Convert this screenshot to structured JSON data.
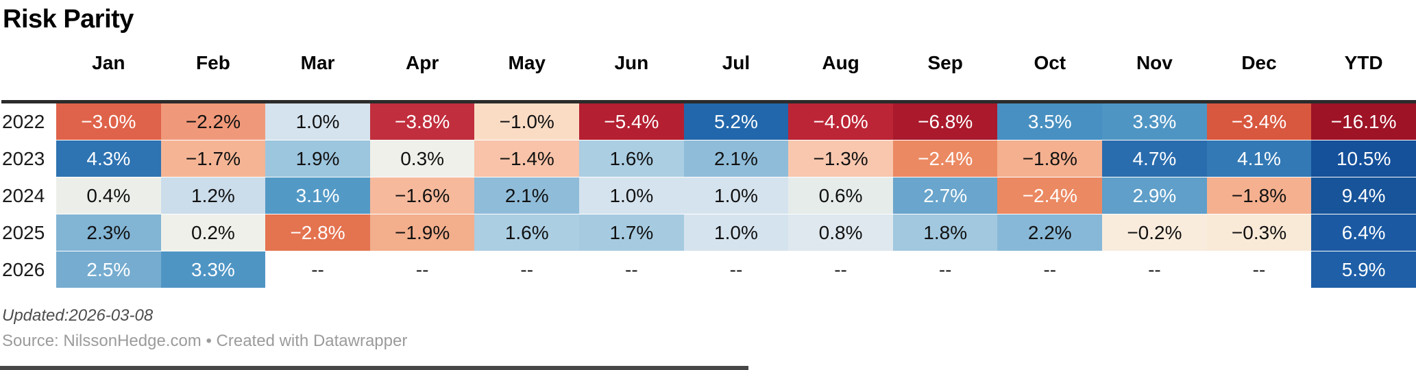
{
  "title": "Risk Parity",
  "columns": [
    "Jan",
    "Feb",
    "Mar",
    "Apr",
    "May",
    "Jun",
    "Jul",
    "Aug",
    "Sep",
    "Oct",
    "Nov",
    "Dec",
    "YTD"
  ],
  "rows": [
    {
      "year": "2022",
      "cells": [
        {
          "v": "−3.0%",
          "bg": "#df634a",
          "fg": "#ffffff"
        },
        {
          "v": "−2.2%",
          "bg": "#f0997a",
          "fg": "#111111"
        },
        {
          "v": "1.0%",
          "bg": "#d5e3ee",
          "fg": "#111111"
        },
        {
          "v": "−3.8%",
          "bg": "#c12e3d",
          "fg": "#ffffff"
        },
        {
          "v": "−1.0%",
          "bg": "#fadcc5",
          "fg": "#111111"
        },
        {
          "v": "−5.4%",
          "bg": "#b41f31",
          "fg": "#ffffff"
        },
        {
          "v": "5.2%",
          "bg": "#2267ab",
          "fg": "#ffffff"
        },
        {
          "v": "−4.0%",
          "bg": "#bc2536",
          "fg": "#ffffff"
        },
        {
          "v": "−6.8%",
          "bg": "#aa1a2c",
          "fg": "#ffffff"
        },
        {
          "v": "3.5%",
          "bg": "#4890c1",
          "fg": "#ffffff"
        },
        {
          "v": "3.3%",
          "bg": "#4f95c4",
          "fg": "#ffffff"
        },
        {
          "v": "−3.4%",
          "bg": "#d8573f",
          "fg": "#ffffff"
        },
        {
          "v": "−16.1%",
          "bg": "#9e1326",
          "fg": "#ffffff"
        }
      ]
    },
    {
      "year": "2023",
      "cells": [
        {
          "v": "4.3%",
          "bg": "#2e73b2",
          "fg": "#ffffff"
        },
        {
          "v": "−1.7%",
          "bg": "#f5b595",
          "fg": "#111111"
        },
        {
          "v": "1.9%",
          "bg": "#9cc5de",
          "fg": "#111111"
        },
        {
          "v": "0.3%",
          "bg": "#eef0e9",
          "fg": "#111111"
        },
        {
          "v": "−1.4%",
          "bg": "#f8c3a8",
          "fg": "#111111"
        },
        {
          "v": "1.6%",
          "bg": "#abcee3",
          "fg": "#111111"
        },
        {
          "v": "2.1%",
          "bg": "#8fbcd9",
          "fg": "#111111"
        },
        {
          "v": "−1.3%",
          "bg": "#f8c7ae",
          "fg": "#111111"
        },
        {
          "v": "−2.4%",
          "bg": "#eb8962",
          "fg": "#ffffff"
        },
        {
          "v": "−1.8%",
          "bg": "#f4b08f",
          "fg": "#111111"
        },
        {
          "v": "4.7%",
          "bg": "#2a6dae",
          "fg": "#ffffff"
        },
        {
          "v": "4.1%",
          "bg": "#3379b5",
          "fg": "#ffffff"
        },
        {
          "v": "10.5%",
          "bg": "#15509a",
          "fg": "#ffffff"
        }
      ]
    },
    {
      "year": "2024",
      "cells": [
        {
          "v": "0.4%",
          "bg": "#ecefe9",
          "fg": "#111111"
        },
        {
          "v": "1.2%",
          "bg": "#cbdcea",
          "fg": "#111111"
        },
        {
          "v": "3.1%",
          "bg": "#5399c6",
          "fg": "#ffffff"
        },
        {
          "v": "−1.6%",
          "bg": "#f6b99c",
          "fg": "#111111"
        },
        {
          "v": "2.1%",
          "bg": "#8fbcd9",
          "fg": "#111111"
        },
        {
          "v": "1.0%",
          "bg": "#d5e3ee",
          "fg": "#111111"
        },
        {
          "v": "1.0%",
          "bg": "#d5e3ee",
          "fg": "#111111"
        },
        {
          "v": "0.6%",
          "bg": "#e5ecea",
          "fg": "#111111"
        },
        {
          "v": "2.7%",
          "bg": "#69a5cc",
          "fg": "#ffffff"
        },
        {
          "v": "−2.4%",
          "bg": "#eb8962",
          "fg": "#ffffff"
        },
        {
          "v": "2.9%",
          "bg": "#5f9fc9",
          "fg": "#ffffff"
        },
        {
          "v": "−1.8%",
          "bg": "#f4b08f",
          "fg": "#111111"
        },
        {
          "v": "9.4%",
          "bg": "#175499",
          "fg": "#ffffff"
        }
      ]
    },
    {
      "year": "2025",
      "cells": [
        {
          "v": "2.3%",
          "bg": "#82b4d4",
          "fg": "#111111"
        },
        {
          "v": "0.2%",
          "bg": "#eff0e9",
          "fg": "#111111"
        },
        {
          "v": "−2.8%",
          "bg": "#e47350",
          "fg": "#ffffff"
        },
        {
          "v": "−1.9%",
          "bg": "#f3ae8c",
          "fg": "#111111"
        },
        {
          "v": "1.6%",
          "bg": "#abcee3",
          "fg": "#111111"
        },
        {
          "v": "1.7%",
          "bg": "#a6cbe1",
          "fg": "#111111"
        },
        {
          "v": "1.0%",
          "bg": "#d5e3ee",
          "fg": "#111111"
        },
        {
          "v": "0.8%",
          "bg": "#dee8ee",
          "fg": "#111111"
        },
        {
          "v": "1.8%",
          "bg": "#a1c8df",
          "fg": "#111111"
        },
        {
          "v": "2.2%",
          "bg": "#88b8d7",
          "fg": "#111111"
        },
        {
          "v": "−0.2%",
          "bg": "#f9ecdd",
          "fg": "#111111"
        },
        {
          "v": "−0.3%",
          "bg": "#f9e9d7",
          "fg": "#111111"
        },
        {
          "v": "6.4%",
          "bg": "#1b5aa3",
          "fg": "#ffffff"
        }
      ]
    },
    {
      "year": "2026",
      "cells": [
        {
          "v": "2.5%",
          "bg": "#76acd0",
          "fg": "#ffffff"
        },
        {
          "v": "3.3%",
          "bg": "#4f95c4",
          "fg": "#ffffff"
        },
        {
          "v": "--",
          "bg": "#ffffff",
          "fg": "#222222"
        },
        {
          "v": "--",
          "bg": "#ffffff",
          "fg": "#222222"
        },
        {
          "v": "--",
          "bg": "#ffffff",
          "fg": "#222222"
        },
        {
          "v": "--",
          "bg": "#ffffff",
          "fg": "#222222"
        },
        {
          "v": "--",
          "bg": "#ffffff",
          "fg": "#222222"
        },
        {
          "v": "--",
          "bg": "#ffffff",
          "fg": "#222222"
        },
        {
          "v": "--",
          "bg": "#ffffff",
          "fg": "#222222"
        },
        {
          "v": "--",
          "bg": "#ffffff",
          "fg": "#222222"
        },
        {
          "v": "--",
          "bg": "#ffffff",
          "fg": "#222222"
        },
        {
          "v": "--",
          "bg": "#ffffff",
          "fg": "#222222"
        },
        {
          "v": "5.9%",
          "bg": "#1e5fa7",
          "fg": "#ffffff"
        }
      ]
    }
  ],
  "footer": {
    "updated": "Updated:2026-03-08",
    "source": "Source: NilssonHedge.com • Created with Datawrapper"
  },
  "colors": {
    "header_rule": "#2b2b2b",
    "negative_max": "#9e1326",
    "positive_max": "#15509a",
    "neutral": "#eff0e9"
  },
  "chart_data": {
    "type": "heatmap",
    "title": "Risk Parity",
    "columns": [
      "Jan",
      "Feb",
      "Mar",
      "Apr",
      "May",
      "Jun",
      "Jul",
      "Aug",
      "Sep",
      "Oct",
      "Nov",
      "Dec",
      "YTD"
    ],
    "rows": [
      "2022",
      "2023",
      "2024",
      "2025",
      "2026"
    ],
    "unit": "%",
    "values": [
      [
        -3.0,
        -2.2,
        1.0,
        -3.8,
        -1.0,
        -5.4,
        5.2,
        -4.0,
        -6.8,
        3.5,
        3.3,
        -3.4,
        -16.1
      ],
      [
        4.3,
        -1.7,
        1.9,
        0.3,
        -1.4,
        1.6,
        2.1,
        -1.3,
        -2.4,
        -1.8,
        4.7,
        4.1,
        10.5
      ],
      [
        0.4,
        1.2,
        3.1,
        -1.6,
        2.1,
        1.0,
        1.0,
        0.6,
        2.7,
        -2.4,
        2.9,
        -1.8,
        9.4
      ],
      [
        2.3,
        0.2,
        -2.8,
        -1.9,
        1.6,
        1.7,
        1.0,
        0.8,
        1.8,
        2.2,
        -0.2,
        -0.3,
        6.4
      ],
      [
        2.5,
        3.3,
        null,
        null,
        null,
        null,
        null,
        null,
        null,
        null,
        null,
        null,
        5.9
      ]
    ],
    "color_scale": "diverging red (negative) to blue (positive), neutral pale near 0",
    "legend_position": "none",
    "grid": false
  }
}
